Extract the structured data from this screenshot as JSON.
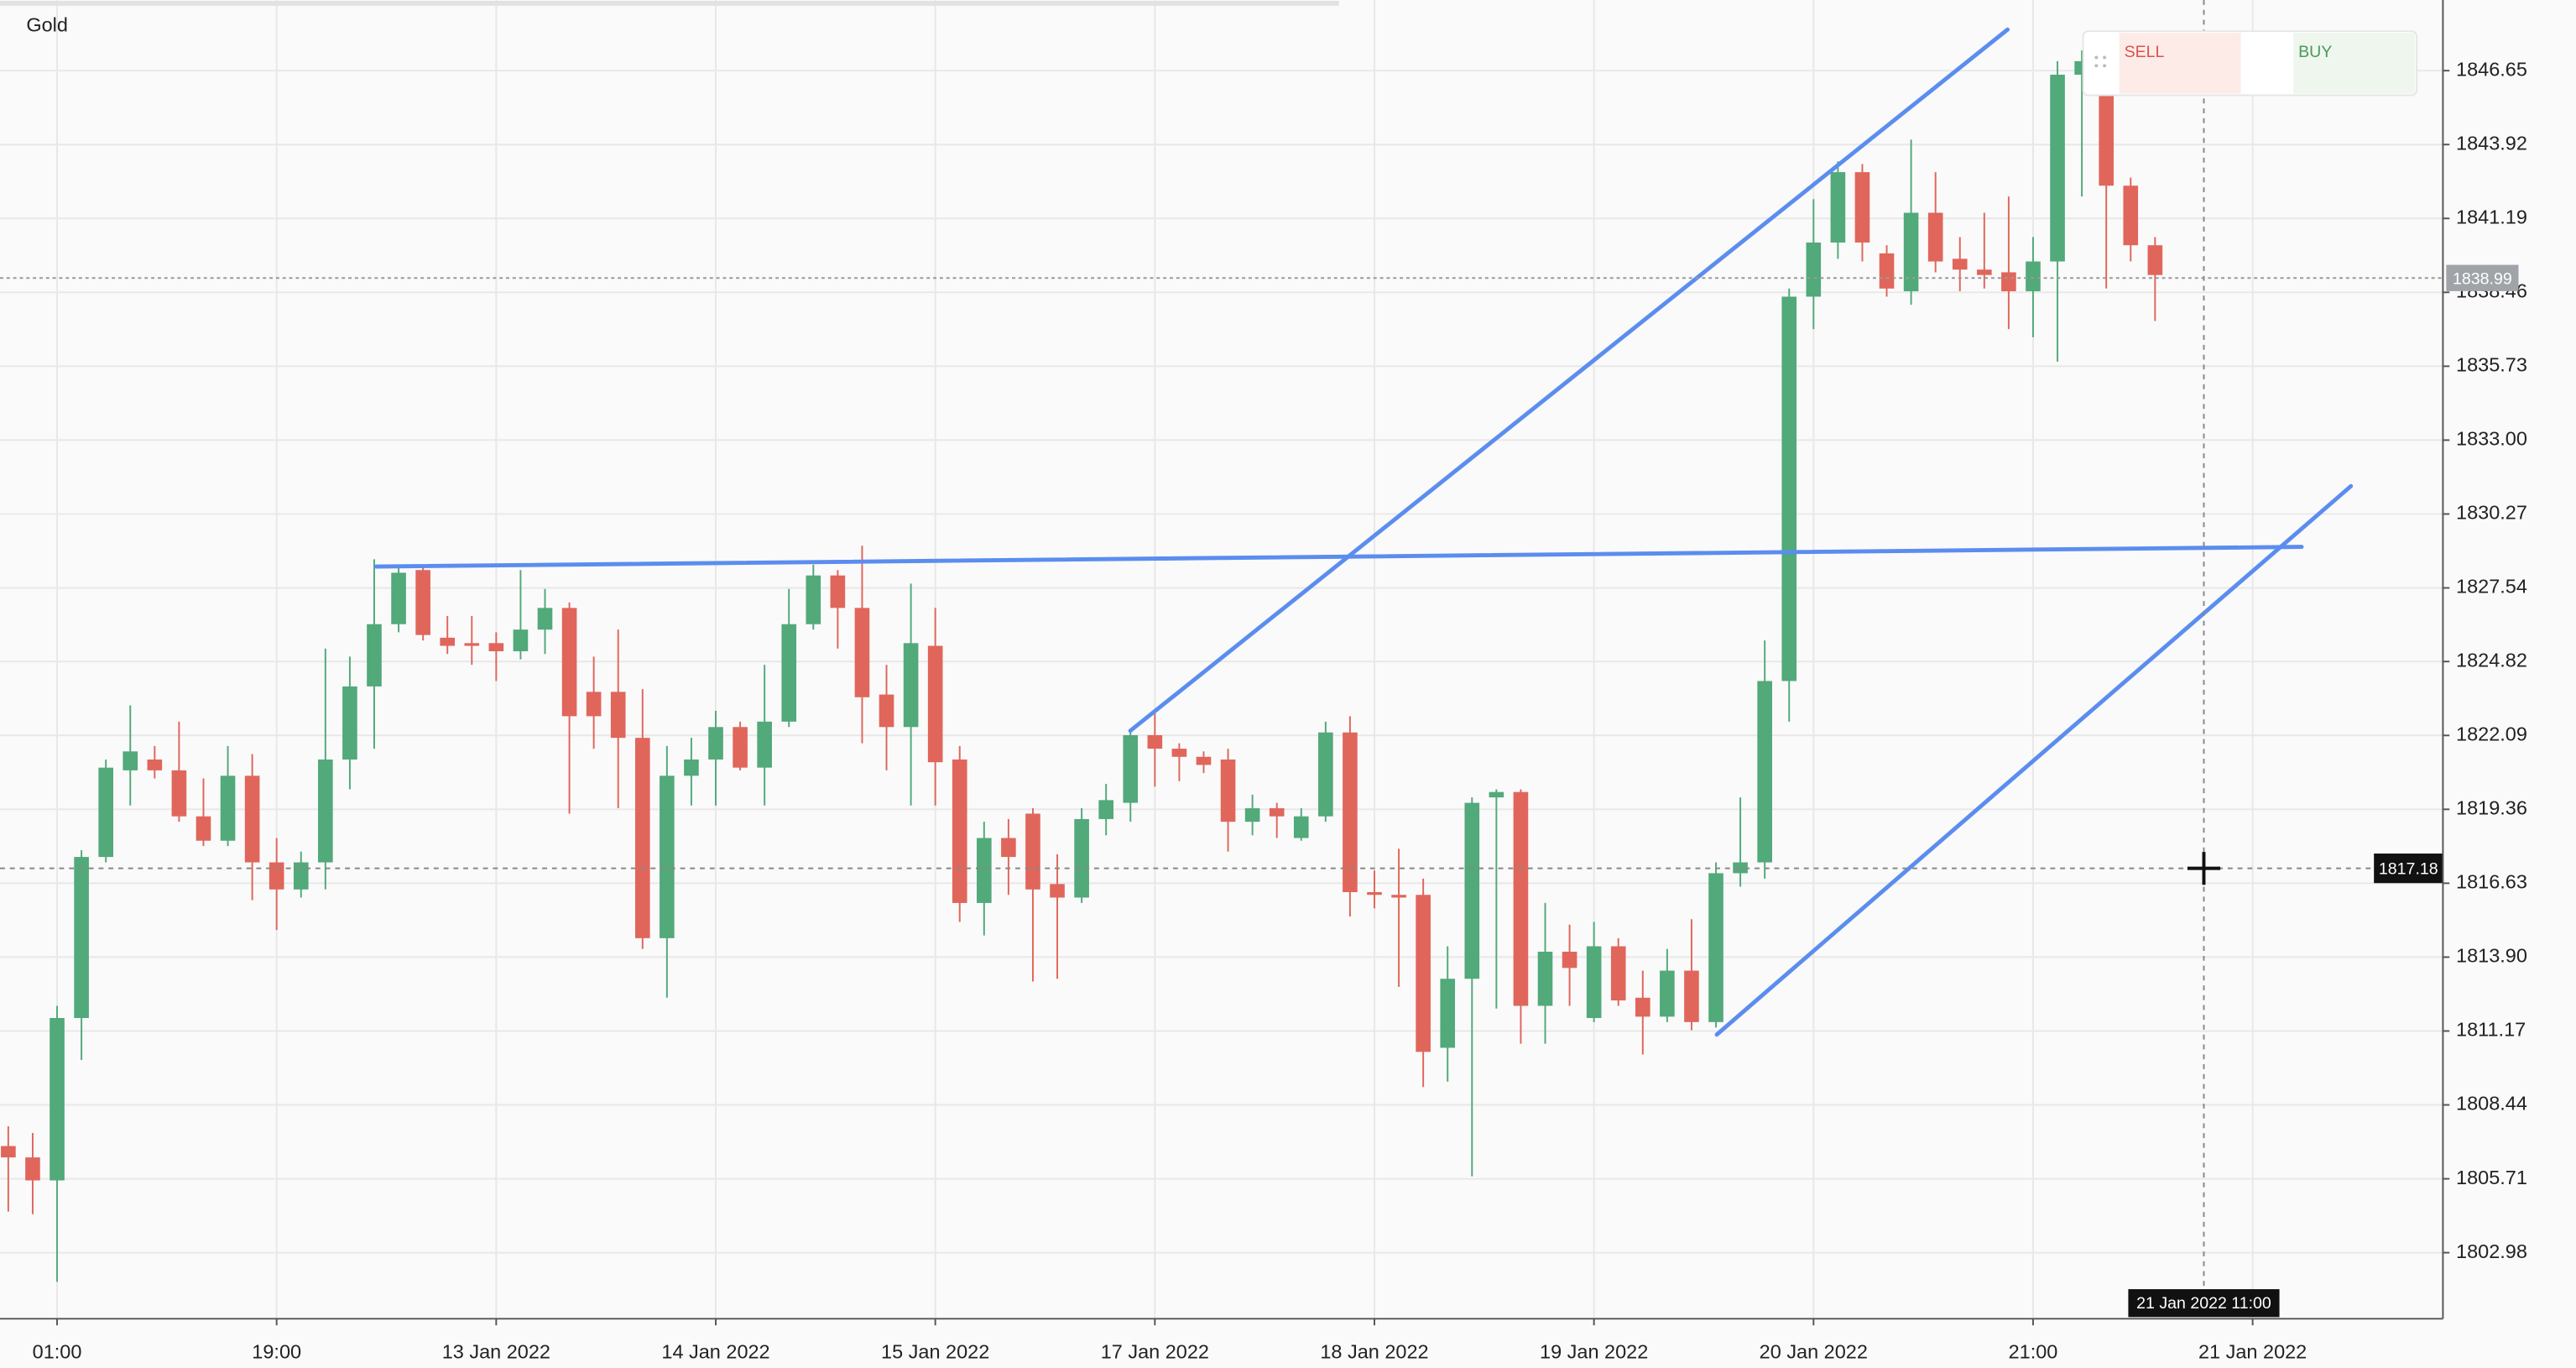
{
  "chart_data": {
    "type": "candlestick",
    "title": "Gold",
    "x": [
      0,
      1,
      2,
      3,
      4,
      5,
      6,
      7,
      8,
      9,
      10,
      11,
      12,
      13,
      14,
      15,
      16,
      17,
      18,
      19,
      20,
      21,
      22,
      23,
      24,
      25,
      26,
      27,
      28,
      29,
      30,
      31,
      32,
      33,
      34,
      35,
      36,
      37,
      38,
      39,
      40,
      41,
      42,
      43,
      44,
      45,
      46,
      47,
      48,
      49,
      50,
      51,
      52,
      53,
      54,
      55,
      56,
      57,
      58,
      59,
      60,
      61,
      62,
      63,
      64,
      65,
      66,
      67,
      68,
      69,
      70,
      71,
      72,
      73,
      74,
      75,
      76,
      77,
      78,
      79,
      80,
      81,
      82,
      83,
      84,
      85,
      86,
      87,
      88
    ],
    "open": [
      1806.92,
      1806.5,
      1805.65,
      1811.65,
      1817.6,
      1820.8,
      1821.2,
      1820.8,
      1819.1,
      1818.2,
      1820.6,
      1817.4,
      1816.4,
      1817.4,
      1821.2,
      1823.9,
      1826.2,
      1828.2,
      1825.7,
      1825.5,
      1825.5,
      1825.2,
      1826.0,
      1826.8,
      1823.7,
      1823.7,
      1822.0,
      1814.6,
      1820.6,
      1821.2,
      1822.4,
      1820.9,
      1822.6,
      1826.2,
      1828.0,
      1826.8,
      1823.6,
      1822.4,
      1825.4,
      1821.2,
      1815.9,
      1818.3,
      1819.2,
      1816.6,
      1816.1,
      1819.0,
      1819.6,
      1822.1,
      1821.6,
      1821.3,
      1821.2,
      1818.9,
      1819.4,
      1818.3,
      1819.1,
      1822.2,
      1816.3,
      1816.2,
      1816.2,
      1810.55,
      1813.1,
      1819.8,
      1820.0,
      1812.1,
      1814.1,
      1811.65,
      1814.3,
      1812.4,
      1811.7,
      1813.4,
      1811.5,
      1817.0,
      1817.4,
      1824.1,
      1838.3,
      1840.3,
      1842.9,
      1839.9,
      1838.5,
      1841.4,
      1839.7,
      1839.3,
      1839.2,
      1838.5,
      1839.6,
      1846.5,
      1845.9,
      1842.4,
      1840.2
    ],
    "high": [
      1807.65,
      1807.4,
      1812.1,
      1817.85,
      1821.2,
      1823.2,
      1821.7,
      1822.6,
      1820.5,
      1821.7,
      1821.4,
      1818.3,
      1817.8,
      1825.3,
      1825.0,
      1828.6,
      1828.4,
      1828.4,
      1826.5,
      1826.5,
      1825.9,
      1828.2,
      1827.5,
      1827.0,
      1825.0,
      1826.0,
      1823.8,
      1821.7,
      1822.0,
      1823.0,
      1822.6,
      1824.7,
      1827.5,
      1828.4,
      1828.2,
      1829.1,
      1824.7,
      1827.7,
      1826.8,
      1821.7,
      1818.9,
      1819.0,
      1819.4,
      1817.7,
      1819.4,
      1820.3,
      1822.3,
      1823.0,
      1821.8,
      1821.5,
      1821.6,
      1819.9,
      1819.6,
      1819.4,
      1822.6,
      1822.8,
      1817.1,
      1817.9,
      1816.8,
      1814.3,
      1819.8,
      1820.1,
      1820.1,
      1815.9,
      1815.1,
      1815.2,
      1814.6,
      1813.4,
      1814.2,
      1815.3,
      1817.4,
      1819.8,
      1825.6,
      1838.6,
      1841.9,
      1843.3,
      1843.2,
      1840.2,
      1844.1,
      1842.9,
      1840.5,
      1841.4,
      1842.0,
      1840.5,
      1847.0,
      1847.4,
      1847.0,
      1842.7,
      1840.5
    ],
    "low": [
      1804.5,
      1804.4,
      1801.9,
      1810.1,
      1817.4,
      1819.5,
      1820.5,
      1818.9,
      1818.0,
      1818.0,
      1816.0,
      1814.9,
      1816.1,
      1816.4,
      1820.1,
      1821.6,
      1825.9,
      1825.6,
      1825.1,
      1824.7,
      1824.1,
      1824.9,
      1825.1,
      1819.2,
      1821.6,
      1819.4,
      1814.2,
      1812.4,
      1819.5,
      1819.5,
      1820.8,
      1819.5,
      1822.4,
      1826.0,
      1825.3,
      1821.8,
      1820.8,
      1819.5,
      1819.5,
      1815.2,
      1814.7,
      1816.2,
      1813.0,
      1813.1,
      1815.9,
      1818.4,
      1818.9,
      1820.2,
      1820.4,
      1820.7,
      1817.8,
      1818.4,
      1818.3,
      1818.2,
      1818.9,
      1815.4,
      1815.7,
      1812.8,
      1809.1,
      1809.3,
      1805.8,
      1812.0,
      1810.7,
      1810.7,
      1812.1,
      1811.5,
      1812.1,
      1810.3,
      1811.5,
      1811.2,
      1811.3,
      1816.5,
      1816.8,
      1822.6,
      1837.1,
      1839.7,
      1839.6,
      1838.3,
      1838.0,
      1839.2,
      1838.5,
      1838.6,
      1837.1,
      1836.8,
      1835.9,
      1842.0,
      1838.6,
      1839.6,
      1837.4
    ],
    "close": [
      1806.5,
      1805.65,
      1811.65,
      1817.6,
      1820.9,
      1821.5,
      1820.8,
      1819.1,
      1818.2,
      1820.6,
      1817.4,
      1816.4,
      1817.4,
      1821.2,
      1823.9,
      1826.2,
      1828.1,
      1825.8,
      1825.4,
      1825.4,
      1825.2,
      1826.0,
      1826.8,
      1822.8,
      1822.8,
      1822.0,
      1814.6,
      1820.6,
      1821.2,
      1822.4,
      1820.9,
      1822.6,
      1826.2,
      1828.0,
      1826.8,
      1823.5,
      1822.4,
      1825.5,
      1821.1,
      1815.9,
      1818.3,
      1817.6,
      1816.4,
      1816.1,
      1819.0,
      1819.7,
      1822.1,
      1821.6,
      1821.3,
      1821.0,
      1818.9,
      1819.4,
      1819.1,
      1819.1,
      1822.2,
      1816.3,
      1816.2,
      1816.1,
      1810.4,
      1813.1,
      1819.6,
      1820.0,
      1812.1,
      1814.1,
      1813.5,
      1814.3,
      1812.3,
      1811.7,
      1813.4,
      1811.5,
      1817.0,
      1817.4,
      1824.1,
      1838.3,
      1840.3,
      1842.9,
      1840.3,
      1838.6,
      1841.4,
      1839.6,
      1839.3,
      1839.1,
      1838.5,
      1839.6,
      1846.5,
      1847.0,
      1842.4,
      1840.2,
      1839.1
    ],
    "up_color": "#52a97a",
    "down_color": "#e0665b",
    "xlim": [
      -0.34,
      99.8
    ],
    "xticks": [
      {
        "value": 2,
        "label": "01:00"
      },
      {
        "value": 11,
        "label": "19:00"
      },
      {
        "value": 20,
        "label": "13 Jan 2022"
      },
      {
        "value": 29,
        "label": "14 Jan 2022"
      },
      {
        "value": 38,
        "label": "15 Jan 2022"
      },
      {
        "value": 47,
        "label": "17 Jan 2022"
      },
      {
        "value": 56,
        "label": "18 Jan 2022"
      },
      {
        "value": 65,
        "label": "19 Jan 2022"
      },
      {
        "value": 74,
        "label": "20 Jan 2022"
      },
      {
        "value": 83,
        "label": "21:00"
      },
      {
        "value": 92,
        "label": "21 Jan 2022"
      }
    ],
    "ylim": [
      1800.54,
      1849.26
    ],
    "yticks": [
      1846.65,
      1843.92,
      1841.19,
      1838.46,
      1835.73,
      {
        "value": 1833,
        "label": "1833.00"
      },
      1830.27,
      1827.54,
      1824.82,
      1822.09,
      1819.36,
      1816.63,
      {
        "value": 1813.9,
        "label": "1813.90"
      },
      1811.17,
      1808.44,
      1805.71,
      1802.98
    ],
    "grid": true,
    "last_price": 1838.99,
    "crosshair": {
      "x": 90,
      "y": 1817.18,
      "x_label": "21 Jan 2022 11:00"
    },
    "trade_panel": {
      "sell": "SELL",
      "buy": "BUY"
    }
  }
}
